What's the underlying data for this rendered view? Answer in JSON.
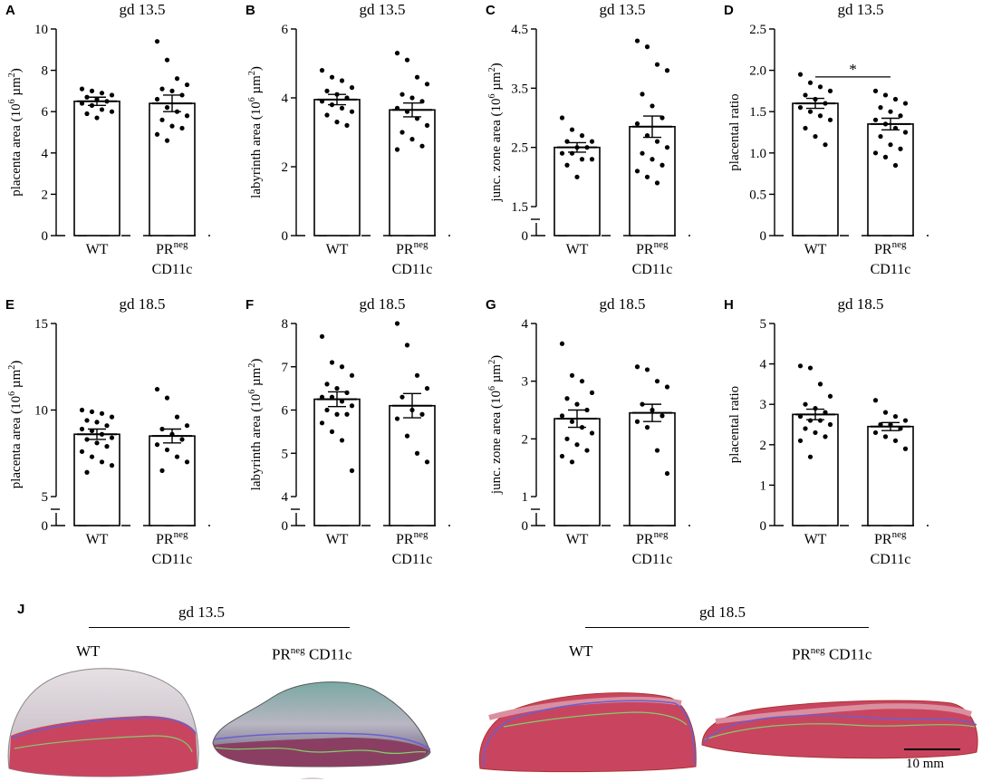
{
  "chart_data": [
    {
      "panel": "A",
      "type": "bar",
      "title": "gd 13.5",
      "ylabel": "placenta area (10^6 µm^2)",
      "ylim": [
        0,
        10
      ],
      "yticks": [
        "0",
        "2",
        "4",
        "6",
        "8",
        "10"
      ],
      "categories": [
        "WT",
        "PRnegCD11c"
      ],
      "mean": [
        6.5,
        6.4
      ],
      "sem": [
        0.2,
        0.4
      ],
      "points": [
        [
          7.1,
          7.0,
          6.9,
          6.8,
          6.7,
          6.6,
          6.5,
          6.4,
          6.3,
          6.1,
          6.0,
          5.9,
          5.7
        ],
        [
          9.4,
          8.5,
          7.6,
          7.3,
          7.1,
          7.0,
          6.8,
          6.6,
          6.2,
          6.0,
          5.8,
          5.6,
          5.3,
          5.2,
          4.9,
          4.6
        ]
      ]
    },
    {
      "panel": "B",
      "type": "bar",
      "title": "gd 13.5",
      "ylabel": "labyrinth area (10^6 µm^2)",
      "ylim": [
        0,
        6
      ],
      "yticks": [
        "0",
        "2",
        "4",
        "6"
      ],
      "categories": [
        "WT",
        "PRnegCD11c"
      ],
      "mean": [
        3.95,
        3.65
      ],
      "sem": [
        0.15,
        0.2
      ],
      "points": [
        [
          4.8,
          4.6,
          4.5,
          4.3,
          4.2,
          4.1,
          4.0,
          3.9,
          3.8,
          3.7,
          3.6,
          3.5,
          3.3,
          3.2
        ],
        [
          5.3,
          5.1,
          4.6,
          4.4,
          4.1,
          4.0,
          3.9,
          3.7,
          3.6,
          3.4,
          3.2,
          3.0,
          2.8,
          2.6,
          2.5
        ]
      ]
    },
    {
      "panel": "C",
      "type": "bar",
      "title": "gd 13.5",
      "ylabel": "junc. zone area (10^6 µm^2)",
      "ylim": [
        1.5,
        4.5
      ],
      "axis_break": true,
      "yticks": [
        "0",
        "1.5",
        "2.5",
        "3.5",
        "4.5"
      ],
      "categories": [
        "WT",
        "PRnegCD11c"
      ],
      "mean": [
        2.5,
        2.85
      ],
      "sem": [
        0.08,
        0.18
      ],
      "points": [
        [
          3.0,
          2.8,
          2.7,
          2.6,
          2.6,
          2.5,
          2.5,
          2.4,
          2.4,
          2.3,
          2.3,
          2.2,
          2.0
        ],
        [
          4.3,
          4.2,
          3.9,
          3.8,
          3.4,
          3.2,
          3.0,
          2.9,
          2.7,
          2.6,
          2.5,
          2.4,
          2.3,
          2.2,
          2.1,
          2.0,
          1.9
        ]
      ]
    },
    {
      "panel": "D",
      "type": "bar",
      "title": "gd 13.5",
      "ylabel": "placental ratio",
      "ylim": [
        0,
        2.5
      ],
      "yticks": [
        "0",
        "0.5",
        "1.0",
        "1.5",
        "2.0",
        "2.5"
      ],
      "categories": [
        "WT",
        "PRnegCD11c"
      ],
      "mean": [
        1.6,
        1.35
      ],
      "sem": [
        0.06,
        0.07
      ],
      "significance": "*",
      "points": [
        [
          1.95,
          1.85,
          1.8,
          1.75,
          1.7,
          1.65,
          1.6,
          1.55,
          1.5,
          1.45,
          1.4,
          1.3,
          1.2,
          1.1
        ],
        [
          1.75,
          1.7,
          1.65,
          1.6,
          1.55,
          1.5,
          1.45,
          1.4,
          1.35,
          1.3,
          1.25,
          1.2,
          1.1,
          1.05,
          1.0,
          0.95,
          0.85
        ]
      ]
    },
    {
      "panel": "E",
      "type": "bar",
      "title": "gd 18.5",
      "ylabel": "placenta area (10^6 µm^2)",
      "ylim": [
        5,
        15
      ],
      "axis_break": true,
      "yticks": [
        "0",
        "5",
        "10",
        "15"
      ],
      "categories": [
        "WT",
        "PRnegCD11c"
      ],
      "mean": [
        8.6,
        8.5
      ],
      "sem": [
        0.3,
        0.4
      ],
      "points": [
        [
          10.0,
          9.9,
          9.8,
          9.6,
          9.4,
          9.3,
          9.1,
          8.9,
          8.8,
          8.6,
          8.4,
          8.3,
          8.1,
          7.9,
          7.6,
          7.3,
          7.0,
          6.8,
          6.4
        ],
        [
          11.2,
          10.7,
          9.6,
          9.1,
          8.9,
          8.6,
          8.3,
          8.0,
          7.7,
          7.3,
          7.0,
          6.5
        ]
      ]
    },
    {
      "panel": "F",
      "type": "bar",
      "title": "gd 18.5",
      "ylabel": "labyrinth area (10^6 µm^2)",
      "ylim": [
        4,
        8
      ],
      "axis_break": true,
      "yticks": [
        "0",
        "4",
        "5",
        "6",
        "7",
        "8"
      ],
      "categories": [
        "WT",
        "PRnegCD11c"
      ],
      "mean": [
        6.25,
        6.1
      ],
      "sem": [
        0.17,
        0.28
      ],
      "points": [
        [
          7.7,
          7.1,
          7.0,
          6.8,
          6.6,
          6.5,
          6.4,
          6.3,
          6.3,
          6.2,
          6.1,
          6.0,
          5.9,
          5.9,
          5.7,
          5.5,
          5.3,
          4.6
        ],
        [
          8.0,
          7.5,
          6.8,
          6.5,
          6.3,
          6.0,
          5.9,
          5.8,
          5.4,
          5.0,
          4.8
        ]
      ]
    },
    {
      "panel": "G",
      "type": "bar",
      "title": "gd 18.5",
      "ylabel": "junc. zone area (10^6 µm^2)",
      "ylim": [
        1,
        4
      ],
      "axis_break": true,
      "yticks": [
        "0",
        "1",
        "2",
        "3",
        "4"
      ],
      "categories": [
        "WT",
        "PRnegCD11c"
      ],
      "mean": [
        2.35,
        2.45
      ],
      "sem": [
        0.15,
        0.15
      ],
      "points": [
        [
          3.65,
          3.1,
          3.0,
          2.8,
          2.7,
          2.6,
          2.5,
          2.4,
          2.3,
          2.2,
          2.1,
          2.0,
          1.9,
          1.8,
          1.7,
          1.6
        ],
        [
          3.25,
          3.2,
          3.0,
          2.9,
          2.6,
          2.5,
          2.4,
          2.3,
          2.2,
          1.8,
          1.4
        ]
      ]
    },
    {
      "panel": "H",
      "type": "bar",
      "title": "gd 18.5",
      "ylabel": "placental ratio",
      "ylim": [
        0,
        5
      ],
      "yticks": [
        "0",
        "1",
        "2",
        "3",
        "4",
        "5"
      ],
      "categories": [
        "WT",
        "PRnegCD11c"
      ],
      "mean": [
        2.75,
        2.45
      ],
      "sem": [
        0.13,
        0.1
      ],
      "points": [
        [
          3.95,
          3.9,
          3.5,
          3.2,
          3.0,
          2.9,
          2.8,
          2.7,
          2.6,
          2.6,
          2.5,
          2.4,
          2.3,
          2.2,
          2.1,
          1.7
        ],
        [
          3.1,
          2.8,
          2.7,
          2.6,
          2.5,
          2.5,
          2.4,
          2.3,
          2.2,
          2.1,
          1.9
        ]
      ]
    }
  ],
  "labels": {
    "x_wt": "WT",
    "x_pr": "PR",
    "x_pr_sup": "neg",
    "x_cd": "CD11c",
    "unit_prefix": "(10",
    "unit_exp": "6",
    "unit_mid": " µm",
    "unit_exp2": "2",
    "unit_suffix": ")"
  },
  "histology": {
    "panel_label": "J",
    "group_13": "gd 13.5",
    "group_18": "gd 18.5",
    "wt_label": "WT",
    "pr_label": "PR",
    "pr_sup": "neg",
    "cd_label": " CD11c",
    "scale_bar": "10 mm"
  },
  "colors": {
    "tissue_red": "#c9455f",
    "tissue_pink": "#d98f9f",
    "decidua_gray": "#c8c0c6",
    "boundary_blue": "#6a5fcf",
    "boundary_green": "#7fcf6a"
  }
}
